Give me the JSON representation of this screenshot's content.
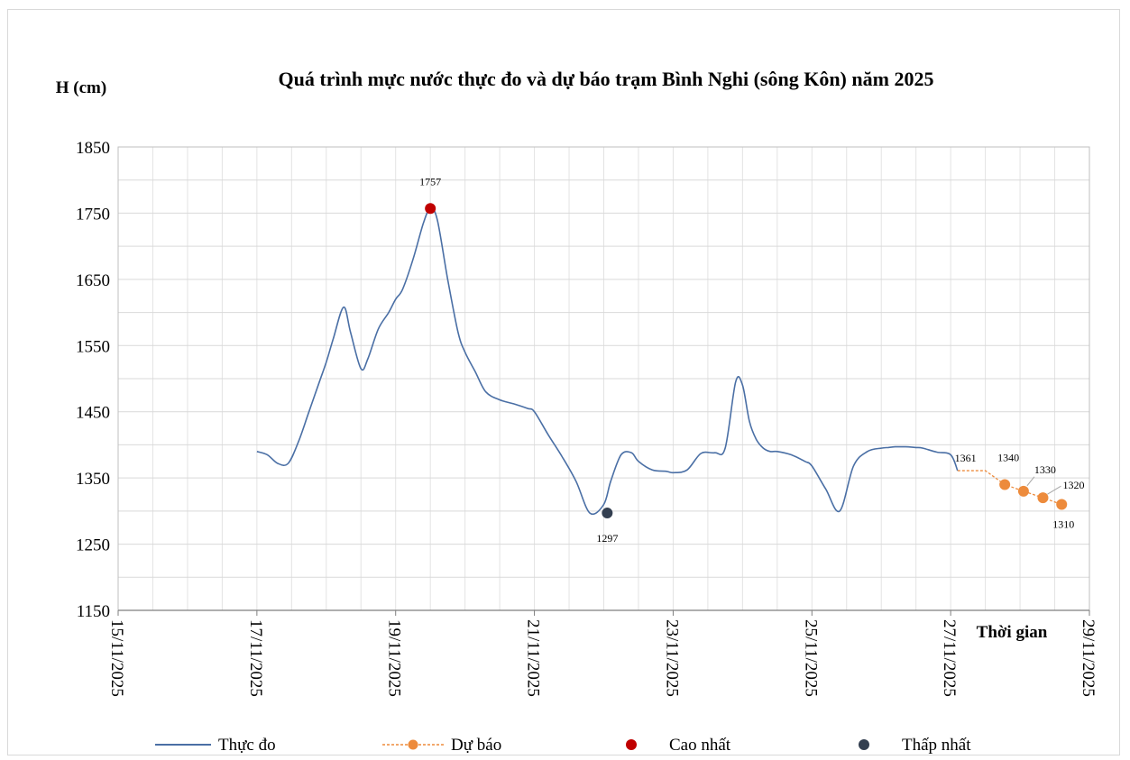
{
  "chart_data": {
    "type": "line",
    "title": "Quá trình mực nước thực đo và dự báo trạm Bình Nghi (sông Kôn) năm 2025",
    "ylabel": "H (cm)",
    "xlabel": "Thời gian",
    "ylim": [
      1150,
      1850
    ],
    "yticks": [
      "1850",
      "1750",
      "1650",
      "1550",
      "1450",
      "1350",
      "1250",
      "1150"
    ],
    "xlim": [
      "15/11/2025",
      "29/11/2025"
    ],
    "xticks": [
      "15/11/2025",
      "17/11/2025",
      "19/11/2025",
      "21/11/2025",
      "23/11/2025",
      "25/11/2025",
      "27/11/2025",
      "29/11/2025"
    ],
    "grid": true,
    "legend_position": "bottom",
    "series": [
      {
        "name": "Thực đo",
        "color": "#4a6fa5",
        "x": [
          17.0,
          17.15,
          17.3,
          17.45,
          17.6,
          17.75,
          17.9,
          18.0,
          18.1,
          18.25,
          18.35,
          18.5,
          18.6,
          18.75,
          18.9,
          19.0,
          19.1,
          19.25,
          19.4,
          19.5,
          19.6,
          19.75,
          19.9,
          20.0,
          20.15,
          20.3,
          20.5,
          20.7,
          20.9,
          21.0,
          21.2,
          21.4,
          21.6,
          21.8,
          22.0,
          22.1,
          22.25,
          22.4,
          22.5,
          22.7,
          22.9,
          23.0,
          23.2,
          23.4,
          23.6,
          23.75,
          23.9,
          24.0,
          24.1,
          24.2,
          24.3,
          24.4,
          24.5,
          24.7,
          24.9,
          25.0,
          25.2,
          25.4,
          25.6,
          25.8,
          26.0,
          26.1,
          26.2,
          26.35,
          26.5,
          26.6,
          26.8,
          27.0,
          27.1
        ],
        "y": [
          1390,
          1385,
          1372,
          1372,
          1405,
          1450,
          1495,
          1525,
          1560,
          1608,
          1570,
          1515,
          1530,
          1575,
          1600,
          1620,
          1635,
          1680,
          1735,
          1757,
          1740,
          1650,
          1570,
          1540,
          1510,
          1480,
          1468,
          1462,
          1455,
          1450,
          1415,
          1382,
          1345,
          1297,
          1310,
          1345,
          1385,
          1388,
          1375,
          1362,
          1360,
          1358,
          1362,
          1387,
          1388,
          1395,
          1495,
          1490,
          1435,
          1408,
          1395,
          1390,
          1390,
          1385,
          1375,
          1368,
          1333,
          1300,
          1368,
          1390,
          1395,
          1396,
          1397,
          1397,
          1396,
          1395,
          1389,
          1385,
          1361
        ]
      },
      {
        "name": "Dự báo",
        "color": "#ed8b3c",
        "x": [
          27.5,
          27.78,
          28.05,
          28.33,
          28.6
        ],
        "y": [
          1361,
          1340,
          1330,
          1320,
          1310
        ],
        "labels": [
          "1361",
          "1340",
          "1330",
          "1320",
          "1310"
        ]
      },
      {
        "name": "Cao nhất",
        "color": "#c00000",
        "x": [
          19.5
        ],
        "y": [
          1757
        ],
        "labels": [
          "1757"
        ]
      },
      {
        "name": "Thấp nhất",
        "color": "#333f50",
        "x": [
          22.05
        ],
        "y": [
          1297
        ],
        "labels": [
          "1297"
        ]
      }
    ]
  }
}
